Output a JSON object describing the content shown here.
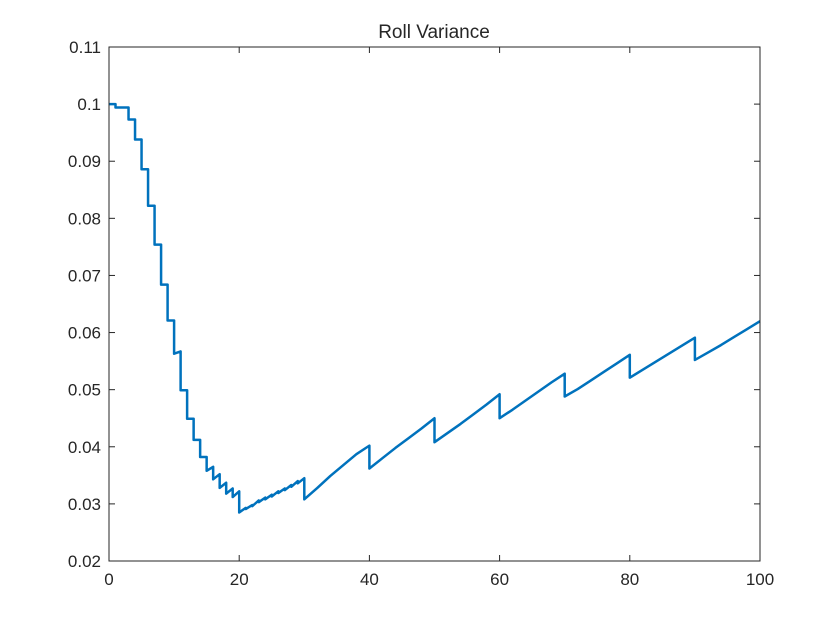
{
  "chart_data": {
    "type": "line",
    "title": "Roll Variance",
    "xlabel": "",
    "ylabel": "",
    "xlim": [
      0,
      100
    ],
    "ylim": [
      0.02,
      0.11
    ],
    "xticks": [
      "0",
      "20",
      "40",
      "60",
      "80",
      "100"
    ],
    "yticks": [
      "0.02",
      "0.03",
      "0.04",
      "0.05",
      "0.06",
      "0.07",
      "0.08",
      "0.09",
      "0.1",
      "0.11"
    ],
    "grid": false,
    "legend": "none",
    "series_color": "#0072BD",
    "series": [
      {
        "name": "",
        "points": [
          [
            0,
            0.1
          ],
          [
            1,
            0.1
          ],
          [
            1,
            0.0994
          ],
          [
            2,
            0.0994
          ],
          [
            2,
            0.0994
          ],
          [
            3,
            0.0994
          ],
          [
            3,
            0.0973
          ],
          [
            4,
            0.0973
          ],
          [
            4,
            0.0938
          ],
          [
            5,
            0.0938
          ],
          [
            5,
            0.0886
          ],
          [
            6,
            0.0886
          ],
          [
            6,
            0.0822
          ],
          [
            7,
            0.0822
          ],
          [
            7,
            0.0754
          ],
          [
            8,
            0.0754
          ],
          [
            8,
            0.0684
          ],
          [
            9,
            0.0684
          ],
          [
            9,
            0.0621
          ],
          [
            10,
            0.0621
          ],
          [
            10,
            0.0563
          ],
          [
            11,
            0.0567
          ],
          [
            11,
            0.0499
          ],
          [
            12,
            0.0499
          ],
          [
            12,
            0.0449
          ],
          [
            13,
            0.0449
          ],
          [
            13,
            0.0412
          ],
          [
            14,
            0.0412
          ],
          [
            14,
            0.0382
          ],
          [
            15,
            0.0382
          ],
          [
            15,
            0.0358
          ],
          [
            16,
            0.0365
          ],
          [
            16,
            0.0343
          ],
          [
            17,
            0.0352
          ],
          [
            17,
            0.0328
          ],
          [
            18,
            0.0337
          ],
          [
            18,
            0.0318
          ],
          [
            19,
            0.0327
          ],
          [
            19,
            0.0312
          ],
          [
            20,
            0.0322
          ],
          [
            20,
            0.0285
          ],
          [
            21,
            0.0293
          ],
          [
            21,
            0.0291
          ],
          [
            22,
            0.0298
          ],
          [
            22,
            0.0296
          ],
          [
            23,
            0.0306
          ],
          [
            23,
            0.0303
          ],
          [
            24,
            0.0311
          ],
          [
            24,
            0.0308
          ],
          [
            25,
            0.0316
          ],
          [
            25,
            0.0313
          ],
          [
            26,
            0.0322
          ],
          [
            26,
            0.0319
          ],
          [
            27,
            0.0327
          ],
          [
            27,
            0.0324
          ],
          [
            28,
            0.0333
          ],
          [
            28,
            0.033
          ],
          [
            29,
            0.034
          ],
          [
            29,
            0.0336
          ],
          [
            30,
            0.0345
          ],
          [
            30,
            0.0308
          ],
          [
            32,
            0.0328
          ],
          [
            34,
            0.0349
          ],
          [
            36,
            0.0368
          ],
          [
            38,
            0.0387
          ],
          [
            40,
            0.0402
          ],
          [
            40,
            0.0362
          ],
          [
            42,
            0.038
          ],
          [
            44,
            0.0398
          ],
          [
            46,
            0.0415
          ],
          [
            48,
            0.0432
          ],
          [
            50,
            0.045
          ],
          [
            50,
            0.0408
          ],
          [
            52,
            0.0424
          ],
          [
            54,
            0.044
          ],
          [
            56,
            0.0457
          ],
          [
            58,
            0.0474
          ],
          [
            60,
            0.0492
          ],
          [
            60,
            0.045
          ],
          [
            62,
            0.0465
          ],
          [
            64,
            0.0481
          ],
          [
            66,
            0.0497
          ],
          [
            68,
            0.0513
          ],
          [
            70,
            0.0528
          ],
          [
            70,
            0.0488
          ],
          [
            72,
            0.0501
          ],
          [
            74,
            0.0516
          ],
          [
            76,
            0.0531
          ],
          [
            78,
            0.0546
          ],
          [
            80,
            0.0561
          ],
          [
            80,
            0.0521
          ],
          [
            82,
            0.0535
          ],
          [
            84,
            0.0549
          ],
          [
            86,
            0.0563
          ],
          [
            88,
            0.0577
          ],
          [
            90,
            0.0591
          ],
          [
            90,
            0.0552
          ],
          [
            92,
            0.0565
          ],
          [
            94,
            0.0578
          ],
          [
            96,
            0.0592
          ],
          [
            98,
            0.0606
          ],
          [
            100,
            0.062
          ]
        ]
      }
    ]
  }
}
